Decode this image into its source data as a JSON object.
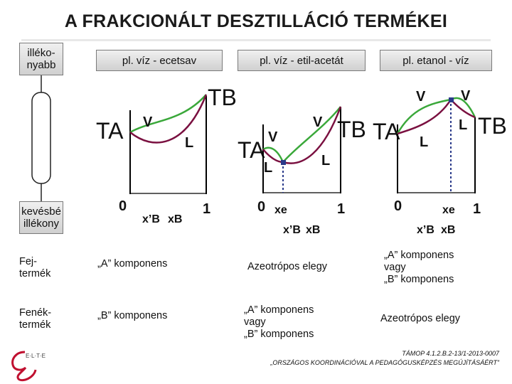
{
  "title": "A FRAKCIONÁLT DESZTILLÁCIÓ TERMÉKEI",
  "left_column": {
    "top_label": "illéko-\nnyabb",
    "bottom_label": "kevésbé\nillékony"
  },
  "headers": {
    "col1": "pl. víz - ecetsav",
    "col2": "pl. víz - etil-acetát",
    "col3": "pl. etanol - víz"
  },
  "diagram1": {
    "ta": "TA",
    "tb": "TB",
    "v": "V",
    "l": "L",
    "x_min": "0",
    "x_max": "1",
    "x_prime": "x’B",
    "x": "xB"
  },
  "diagram2": {
    "ta": "TA",
    "tb": "TB",
    "v1": "V",
    "v2": "V",
    "l1": "L",
    "l2": "L",
    "x_min": "0",
    "x_max": "1",
    "xe": "xe",
    "x_prime": "x’B",
    "x": "xB"
  },
  "diagram3": {
    "ta": "TA",
    "tb": "TB",
    "v1": "V",
    "v2": "V",
    "l1": "L",
    "l2": "L",
    "x_min": "0",
    "x_max": "1",
    "xe": "xe",
    "x_prime": "x’B",
    "x": "xB"
  },
  "rows": {
    "head_label": "Fej-\ntermék",
    "bottom_label": "Fenék-\ntermék",
    "head_col1": "„A” komponens",
    "head_col2": "Azeotrópos elegy",
    "head_col3": "„A” komponens\nvagy\n„B” komponens",
    "bottom_col1": "„B” komponens",
    "bottom_col2": "„A” komponens\nvagy\n„B” komponens",
    "bottom_col3": "Azeotrópos elegy"
  },
  "footer": {
    "line1": "TÁMOP 4.1.2.B.2-13/1-2013-0007",
    "line2": "„ORSZÁGOS KOORDINÁCIÓVAL A PEDAGÓGUSKÉPZÉS MEGÚJÍTÁSÁÉRT”"
  },
  "logo": {
    "text": "E·L·T·E"
  },
  "colors": {
    "vapor_curve": "#3aa83a",
    "liquid_curve": "#7a1040",
    "title": "#1a1a1a",
    "azeotrope_marker": "#2a3a8a"
  }
}
